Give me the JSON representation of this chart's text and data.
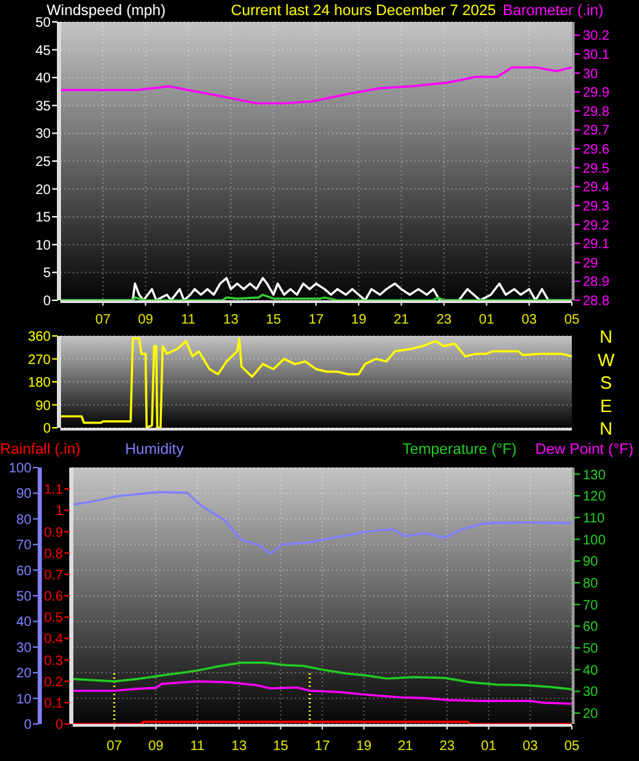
{
  "chart_data": [
    {
      "type": "line",
      "title": "Current last 24 hours December 7 2025",
      "legend": "top",
      "grid": true,
      "xlim": [
        "2025-12-06T05:00",
        "2025-12-07T05:00"
      ],
      "xticks": [
        {
          "value": "2025-12-06T07:00",
          "label": "07"
        },
        {
          "value": "2025-12-06T09:00",
          "label": "09"
        },
        {
          "value": "2025-12-06T11:00",
          "label": "11"
        },
        {
          "value": "2025-12-06T13:00",
          "label": "13"
        },
        {
          "value": "2025-12-06T15:00",
          "label": "15"
        },
        {
          "value": "2025-12-06T17:00",
          "label": "17"
        },
        {
          "value": "2025-12-06T19:00",
          "label": "19"
        },
        {
          "value": "2025-12-06T21:00",
          "label": "21"
        },
        {
          "value": "2025-12-06T23:00",
          "label": "23"
        },
        {
          "value": "2025-12-07T01:00",
          "label": "01"
        },
        {
          "value": "2025-12-07T03:00",
          "label": "03"
        },
        {
          "value": "2025-12-07T05:00",
          "label": "05"
        }
      ],
      "ylim": [
        0,
        50
      ],
      "yticks": [
        0,
        5,
        10,
        15,
        20,
        25,
        30,
        35,
        40,
        45,
        50
      ],
      "y2lim": [
        28.8,
        30.27
      ],
      "y2ticks": [
        28.8,
        28.9,
        29,
        29.1,
        29.2,
        29.3,
        29.4,
        29.5,
        29.6,
        29.7,
        29.8,
        29.9,
        30,
        30.1,
        30.2
      ],
      "series": [
        {
          "name": "Windspeed (mph)",
          "color": "#ffffff",
          "x": [
            "2025-12-06T05:00",
            "2025-12-06T08:24",
            "2025-12-06T08:30",
            "2025-12-06T08:42",
            "2025-12-06T08:54",
            "2025-12-06T09:18",
            "2025-12-06T09:30",
            "2025-12-06T10:00",
            "2025-12-06T10:12",
            "2025-12-06T10:36",
            "2025-12-06T10:48",
            "2025-12-06T11:06",
            "2025-12-06T11:18",
            "2025-12-06T11:36",
            "2025-12-06T11:54",
            "2025-12-06T12:12",
            "2025-12-06T12:30",
            "2025-12-06T12:48",
            "2025-12-06T13:00",
            "2025-12-06T13:18",
            "2025-12-06T13:36",
            "2025-12-06T13:54",
            "2025-12-06T14:12",
            "2025-12-06T14:30",
            "2025-12-06T14:42",
            "2025-12-06T15:00",
            "2025-12-06T15:12",
            "2025-12-06T15:30",
            "2025-12-06T15:48",
            "2025-12-06T16:06",
            "2025-12-06T16:24",
            "2025-12-06T16:42",
            "2025-12-06T17:00",
            "2025-12-06T17:24",
            "2025-12-06T17:42",
            "2025-12-06T18:00",
            "2025-12-06T18:24",
            "2025-12-06T18:42",
            "2025-12-06T19:00",
            "2025-12-06T19:18",
            "2025-12-06T19:36",
            "2025-12-06T20:00",
            "2025-12-06T20:18",
            "2025-12-06T20:42",
            "2025-12-06T21:00",
            "2025-12-06T21:24",
            "2025-12-06T21:48",
            "2025-12-06T22:12",
            "2025-12-06T22:30",
            "2025-12-06T22:48",
            "2025-12-06T23:12",
            "2025-12-06T23:42",
            "2025-12-07T00:06",
            "2025-12-07T00:24",
            "2025-12-07T00:42",
            "2025-12-07T01:12",
            "2025-12-07T01:36",
            "2025-12-07T01:54",
            "2025-12-07T02:18",
            "2025-12-07T02:36",
            "2025-12-07T03:00",
            "2025-12-07T03:18",
            "2025-12-07T03:36",
            "2025-12-07T03:54",
            "2025-12-07T05:00"
          ],
          "values": [
            0,
            0,
            3,
            1,
            0,
            2,
            0,
            1,
            0,
            2,
            0,
            1,
            2,
            1,
            2,
            1,
            3,
            4,
            2,
            3,
            2,
            3,
            2,
            4,
            3,
            1,
            3,
            1,
            2,
            1,
            3,
            2,
            3,
            2,
            1,
            2,
            1,
            2,
            1,
            0,
            2,
            1,
            2,
            3,
            2,
            1,
            2,
            1,
            2,
            0,
            0,
            0,
            2,
            1,
            0,
            1,
            3,
            1,
            2,
            1,
            2,
            0,
            2,
            0,
            0
          ]
        },
        {
          "color": "#33cc33",
          "x": [
            "2025-12-06T05:00",
            "2025-12-06T08:24",
            "2025-12-06T08:30",
            "2025-12-06T09:00",
            "2025-12-06T12:36",
            "2025-12-06T12:48",
            "2025-12-06T13:18",
            "2025-12-06T14:18",
            "2025-12-06T14:30",
            "2025-12-06T15:00",
            "2025-12-06T17:12",
            "2025-12-06T17:24",
            "2025-12-06T18:00",
            "2025-12-06T22:30",
            "2025-12-06T22:42",
            "2025-12-06T23:00",
            "2025-12-07T05:00"
          ],
          "values": [
            0,
            0,
            0.5,
            0,
            0,
            0.5,
            0.3,
            0.5,
            1,
            0.3,
            0.3,
            0.5,
            0,
            0,
            0.5,
            0,
            0
          ]
        },
        {
          "name": "Barometer (.in)",
          "color": "#ff00ff",
          "axis": "y2",
          "x": [
            "2025-12-06T05:00",
            "2025-12-06T08:36",
            "2025-12-06T10:06",
            "2025-12-06T11:00",
            "2025-12-06T12:54",
            "2025-12-06T14:12",
            "2025-12-06T15:30",
            "2025-12-06T16:48",
            "2025-12-06T18:30",
            "2025-12-06T20:00",
            "2025-12-06T21:30",
            "2025-12-06T23:12",
            "2025-12-07T00:30",
            "2025-12-07T01:30",
            "2025-12-07T02:12",
            "2025-12-07T03:18",
            "2025-12-07T04:18",
            "2025-12-07T05:00"
          ],
          "values": [
            29.91,
            29.91,
            29.93,
            29.91,
            29.87,
            29.84,
            29.84,
            29.85,
            29.89,
            29.92,
            29.93,
            29.95,
            29.98,
            29.98,
            30.03,
            30.03,
            30.01,
            30.03
          ]
        }
      ]
    },
    {
      "type": "line",
      "grid": "y",
      "tick_labels": "y",
      "xlim": [
        "2025-12-06T05:00",
        "2025-12-07T05:00"
      ],
      "ylim": [
        0,
        360
      ],
      "yticks": [
        0,
        90,
        180,
        270,
        360
      ],
      "annotations": [
        "N",
        "W",
        "S",
        "E",
        "N"
      ],
      "series": [
        {
          "color": "#ffff00",
          "x": [
            "2025-12-06T05:00",
            "2025-12-06T06:00",
            "2025-12-06T06:06",
            "2025-12-06T06:54",
            "2025-12-06T07:00",
            "2025-12-06T08:18",
            "2025-12-06T08:24",
            "2025-12-06T08:42",
            "2025-12-06T08:48",
            "2025-12-06T09:00",
            "2025-12-06T09:03",
            "2025-12-06T09:18",
            "2025-12-06T09:24",
            "2025-12-06T09:30",
            "2025-12-06T09:33",
            "2025-12-06T09:42",
            "2025-12-06T09:48",
            "2025-12-06T10:00",
            "2025-12-06T10:30",
            "2025-12-06T10:54",
            "2025-12-06T11:12",
            "2025-12-06T11:30",
            "2025-12-06T12:00",
            "2025-12-06T12:24",
            "2025-12-06T12:48",
            "2025-12-06T13:18",
            "2025-12-06T13:24",
            "2025-12-06T13:30",
            "2025-12-06T14:00",
            "2025-12-06T14:30",
            "2025-12-06T15:00",
            "2025-12-06T15:30",
            "2025-12-06T16:00",
            "2025-12-06T16:30",
            "2025-12-06T17:00",
            "2025-12-06T17:30",
            "2025-12-06T18:00",
            "2025-12-06T18:30",
            "2025-12-06T19:00",
            "2025-12-06T19:18",
            "2025-12-06T19:48",
            "2025-12-06T20:18",
            "2025-12-06T20:42",
            "2025-12-06T21:30",
            "2025-12-06T22:00",
            "2025-12-06T22:36",
            "2025-12-06T23:00",
            "2025-12-06T23:30",
            "2025-12-07T00:00",
            "2025-12-07T00:30",
            "2025-12-07T01:00",
            "2025-12-07T01:18",
            "2025-12-07T02:30",
            "2025-12-07T02:42",
            "2025-12-07T03:30",
            "2025-12-07T04:30",
            "2025-12-07T05:00"
          ],
          "values": [
            45,
            45,
            20,
            20,
            25,
            25,
            350,
            350,
            290,
            290,
            0,
            10,
            320,
            320,
            0,
            0,
            320,
            290,
            310,
            340,
            280,
            300,
            230,
            210,
            260,
            300,
            350,
            240,
            200,
            250,
            230,
            270,
            250,
            260,
            230,
            220,
            220,
            210,
            210,
            250,
            270,
            260,
            300,
            310,
            320,
            340,
            320,
            330,
            280,
            290,
            290,
            300,
            300,
            285,
            290,
            290,
            280
          ]
        }
      ]
    },
    {
      "type": "line",
      "legend": "top",
      "grid": true,
      "xlim": [
        "2025-12-06T05:00",
        "2025-12-07T05:00"
      ],
      "xticks": [
        {
          "value": "2025-12-06T07:00",
          "label": "07"
        },
        {
          "value": "2025-12-06T09:00",
          "label": "09"
        },
        {
          "value": "2025-12-06T11:00",
          "label": "11"
        },
        {
          "value": "2025-12-06T13:00",
          "label": "13"
        },
        {
          "value": "2025-12-06T15:00",
          "label": "15"
        },
        {
          "value": "2025-12-06T17:00",
          "label": "17"
        },
        {
          "value": "2025-12-06T19:00",
          "label": "19"
        },
        {
          "value": "2025-12-06T21:00",
          "label": "21"
        },
        {
          "value": "2025-12-06T23:00",
          "label": "23"
        },
        {
          "value": "2025-12-07T01:00",
          "label": "01"
        },
        {
          "value": "2025-12-07T03:00",
          "label": "03"
        },
        {
          "value": "2025-12-07T05:00",
          "label": "05"
        }
      ],
      "ylim": [
        0,
        100
      ],
      "yticks": [
        0,
        10,
        20,
        30,
        40,
        50,
        60,
        70,
        80,
        90,
        100
      ],
      "y2lim": [
        0,
        1.2
      ],
      "y2ticks": [
        0,
        0.1,
        0.2,
        0.3,
        0.4,
        0.5,
        0.6,
        0.7,
        0.8,
        0.9,
        1,
        1.1
      ],
      "y3lim": [
        15,
        133
      ],
      "y3ticks": [
        20,
        30,
        40,
        50,
        60,
        70,
        80,
        90,
        100,
        110,
        120,
        130
      ],
      "ref_lines": [
        {
          "axis": "x",
          "value": "2025-12-06T07:00",
          "color": "#ffff00",
          "line_style": "dotted"
        },
        {
          "axis": "x",
          "value": "2025-12-06T16:24",
          "color": "#ffff00",
          "line_style": "dotted"
        }
      ],
      "series": [
        {
          "name": "Rainfall (.in)",
          "color": "#ff0000",
          "axis": "y2",
          "x": [
            "2025-12-06T05:00",
            "2025-12-06T08:18",
            "2025-12-06T08:24",
            "2025-12-07T00:00",
            "2025-12-07T00:06",
            "2025-12-07T05:00"
          ],
          "values": [
            0,
            0,
            0.01,
            0.01,
            0,
            0
          ]
        },
        {
          "name": "Humidity",
          "color": "#8080ff",
          "x": [
            "2025-12-06T05:00",
            "2025-12-06T05:54",
            "2025-12-06T07:12",
            "2025-12-06T09:06",
            "2025-12-06T10:30",
            "2025-12-06T11:12",
            "2025-12-06T12:18",
            "2025-12-06T13:06",
            "2025-12-06T14:00",
            "2025-12-06T14:30",
            "2025-12-06T15:06",
            "2025-12-06T16:24",
            "2025-12-06T17:18",
            "2025-12-06T19:06",
            "2025-12-06T20:24",
            "2025-12-06T21:00",
            "2025-12-06T21:54",
            "2025-12-06T22:54",
            "2025-12-06T23:42",
            "2025-12-07T00:48",
            "2025-12-07T02:48",
            "2025-12-07T05:00"
          ],
          "values": [
            85.5,
            86.7,
            88.9,
            90.4,
            90.2,
            85,
            79.5,
            71.9,
            69.6,
            66.5,
            70,
            70.8,
            72.3,
            75,
            75.9,
            73.2,
            74.5,
            72.6,
            75.9,
            78.3,
            78.6,
            78.3
          ]
        },
        {
          "name": "Temperature (°F)",
          "color": "#22cc22",
          "axis": "y3",
          "x": [
            "2025-12-06T05:00",
            "2025-12-06T07:00",
            "2025-12-06T08:06",
            "2025-12-06T09:12",
            "2025-12-06T11:00",
            "2025-12-06T12:06",
            "2025-12-06T13:06",
            "2025-12-06T14:18",
            "2025-12-06T15:12",
            "2025-12-06T16:06",
            "2025-12-06T17:00",
            "2025-12-06T18:06",
            "2025-12-06T19:12",
            "2025-12-06T20:06",
            "2025-12-06T21:24",
            "2025-12-06T22:54",
            "2025-12-07T00:06",
            "2025-12-07T01:24",
            "2025-12-07T02:54",
            "2025-12-07T04:00",
            "2025-12-07T05:00"
          ],
          "values": [
            35.7,
            34.6,
            35.7,
            37.2,
            39.6,
            41.7,
            43.2,
            43.2,
            42.1,
            41.7,
            40,
            38.3,
            37.2,
            35.9,
            36.6,
            36.2,
            34.2,
            33.1,
            32.8,
            32,
            31
          ]
        },
        {
          "name": "Dew Point (°F)",
          "color": "#ff00ff",
          "axis": "y3",
          "x": [
            "2025-12-06T05:00",
            "2025-12-06T07:00",
            "2025-12-06T08:06",
            "2025-12-06T09:00",
            "2025-12-06T09:18",
            "2025-12-06T11:00",
            "2025-12-06T12:30",
            "2025-12-06T13:48",
            "2025-12-06T14:30",
            "2025-12-06T15:48",
            "2025-12-06T16:24",
            "2025-12-06T17:48",
            "2025-12-06T19:12",
            "2025-12-06T20:42",
            "2025-12-06T22:00",
            "2025-12-06T23:06",
            "2025-12-07T00:36",
            "2025-12-07T03:00",
            "2025-12-07T03:36",
            "2025-12-07T05:00"
          ],
          "values": [
            30.3,
            30.3,
            31.2,
            31.6,
            33.5,
            34.6,
            34.2,
            32.9,
            31.4,
            31.8,
            30.3,
            29.7,
            28.4,
            27.3,
            26.9,
            26,
            25.6,
            25.6,
            24.8,
            24.3
          ]
        }
      ]
    }
  ]
}
